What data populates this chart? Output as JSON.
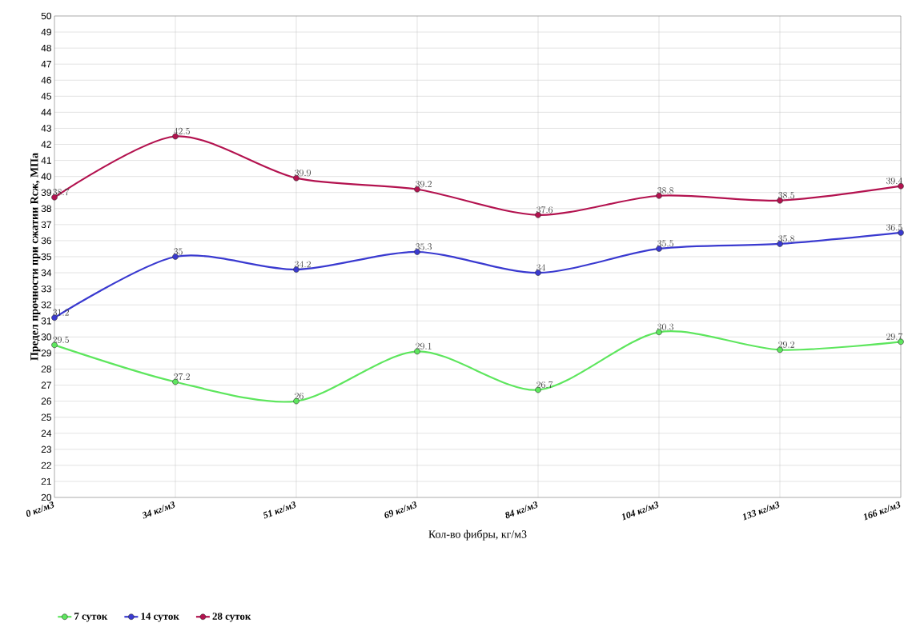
{
  "chart_data": {
    "type": "line",
    "xlabel": "Кол-во фибры, кг/м3",
    "ylabel": "Предел прочности при сжатии Rсж, МПа",
    "categories": [
      "0 кг/м3",
      "34 кг/м3",
      "51 кг/м3",
      "69 кг/м3",
      "84 кг/м3",
      "104 кг/м3",
      "133 кг/м3",
      "166 кг/м3"
    ],
    "series": [
      {
        "name": "7 суток",
        "color": "#5ee65e",
        "values": [
          29.5,
          27.2,
          26,
          29.1,
          26.7,
          30.3,
          29.2,
          29.7
        ]
      },
      {
        "name": "14 суток",
        "color": "#3a3ad0",
        "values": [
          31.2,
          35,
          34.2,
          35.3,
          34,
          35.5,
          35.8,
          36.5
        ]
      },
      {
        "name": "28 суток",
        "color": "#b3124f",
        "values": [
          38.7,
          42.5,
          39.9,
          39.2,
          37.6,
          38.8,
          38.5,
          39.4
        ]
      }
    ],
    "ylim": [
      20,
      50
    ],
    "yticks": [
      20,
      21,
      22,
      23,
      24,
      25,
      26,
      27,
      28,
      29,
      30,
      31,
      32,
      33,
      34,
      35,
      36,
      37,
      38,
      39,
      40,
      41,
      42,
      43,
      44,
      45,
      46,
      47,
      48,
      49,
      50
    ],
    "grid": true,
    "legend": "bottom",
    "marker": "circle",
    "line_style": "solid",
    "data_labels": true
  }
}
